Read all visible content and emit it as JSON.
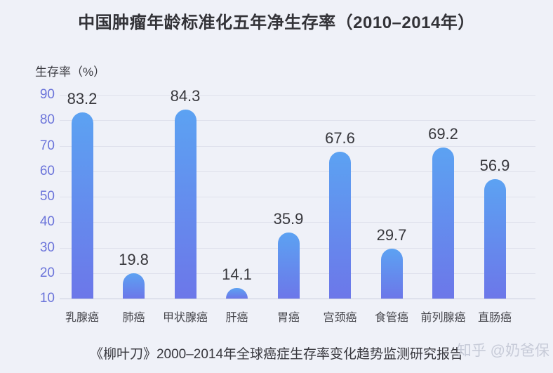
{
  "title": "中国肿瘤年龄标准化五年净生存率（2010–2014年）",
  "axis_label": "生存率（%）",
  "source_note": "《柳叶刀》2000–2014年全球癌症生存率变化趋势监测研究报告",
  "watermark": "知乎 @奶爸保",
  "colors": {
    "background": "#eff1f8",
    "bar_gradient_top": "#5ca2f2",
    "bar_gradient_bottom": "#6c77e9",
    "grid_line": "#dfe1ec",
    "baseline": "#c9cdde",
    "tick_label": "#6b74da",
    "value_label": "#37373c",
    "category_label": "#45454b",
    "title_text": "#333338",
    "watermark_text": "#c7cbd8"
  },
  "chart_data": {
    "type": "bar",
    "categories": [
      "乳腺癌",
      "肺癌",
      "甲状腺癌",
      "肝癌",
      "胃癌",
      "宫颈癌",
      "食管癌",
      "前列腺癌",
      "直肠癌"
    ],
    "values": [
      83.2,
      19.8,
      84.3,
      14.1,
      35.9,
      67.6,
      29.7,
      69.2,
      56.9
    ],
    "title": "中国肿瘤年龄标准化五年净生存率（2010–2014年）",
    "xlabel": "",
    "ylabel": "生存率（%）",
    "ylim": [
      10,
      90
    ],
    "yticks": [
      10,
      20,
      30,
      40,
      50,
      60,
      70,
      80,
      90
    ],
    "grid": true,
    "legend": false,
    "value_labels_shown": true,
    "bar_gradient": [
      "#5ca2f2",
      "#6c77e9"
    ]
  }
}
